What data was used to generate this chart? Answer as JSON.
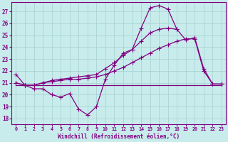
{
  "xlabel": "Windchill (Refroidissement éolien,°C)",
  "bg_color": "#c8ecec",
  "grid_color": "#aad4d4",
  "line_color": "#800080",
  "x_ticks": [
    0,
    1,
    2,
    3,
    4,
    5,
    6,
    7,
    8,
    9,
    10,
    11,
    12,
    13,
    14,
    15,
    16,
    17,
    18,
    19,
    20,
    21,
    22,
    23
  ],
  "y_ticks": [
    18,
    19,
    20,
    21,
    22,
    23,
    24,
    25,
    26,
    27
  ],
  "ylim": [
    17.5,
    27.8
  ],
  "xlim": [
    -0.5,
    23.5
  ],
  "series1": [
    21.7,
    20.8,
    20.5,
    20.5,
    20.0,
    19.8,
    20.1,
    18.8,
    18.3,
    19.0,
    21.3,
    22.5,
    23.5,
    23.8,
    25.6,
    27.3,
    27.5,
    27.2,
    25.5,
    null,
    null,
    null,
    null,
    null
  ],
  "series2": [
    21.0,
    20.8,
    20.8,
    21.0,
    21.1,
    21.2,
    21.3,
    21.3,
    21.4,
    21.5,
    21.7,
    22.0,
    22.3,
    22.7,
    23.1,
    23.5,
    23.9,
    24.2,
    24.5,
    24.7,
    24.7,
    22.0,
    20.9,
    20.9
  ],
  "series3": [
    21.0,
    20.8,
    20.8,
    21.0,
    21.2,
    21.3,
    21.4,
    21.5,
    21.6,
    21.7,
    22.2,
    22.7,
    23.3,
    23.8,
    24.5,
    25.2,
    25.5,
    25.6,
    25.5,
    24.6,
    24.8,
    22.2,
    20.9,
    20.9
  ],
  "series4": [
    20.8,
    20.8,
    20.8,
    20.8,
    20.8,
    20.8,
    20.8,
    20.8,
    20.8,
    20.8,
    20.8,
    20.8,
    20.8,
    20.8,
    20.8,
    20.8,
    20.8,
    20.8,
    20.8,
    20.8,
    20.8,
    20.8,
    20.8,
    20.8
  ]
}
